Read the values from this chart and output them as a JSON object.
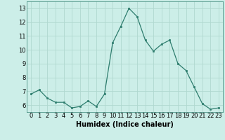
{
  "x": [
    0,
    1,
    2,
    3,
    4,
    5,
    6,
    7,
    8,
    9,
    10,
    11,
    12,
    13,
    14,
    15,
    16,
    17,
    18,
    19,
    20,
    21,
    22,
    23
  ],
  "y": [
    6.8,
    7.1,
    6.5,
    6.2,
    6.2,
    5.8,
    5.9,
    6.3,
    5.9,
    6.8,
    10.5,
    11.7,
    13.0,
    12.4,
    10.7,
    9.9,
    10.4,
    10.7,
    9.0,
    8.5,
    7.3,
    6.1,
    5.7,
    5.8
  ],
  "xlabel": "Humidex (Indice chaleur)",
  "xlim_min": -0.5,
  "xlim_max": 23.5,
  "ylim_min": 5.5,
  "ylim_max": 13.5,
  "yticks": [
    6,
    7,
    8,
    9,
    10,
    11,
    12,
    13
  ],
  "xticks": [
    0,
    1,
    2,
    3,
    4,
    5,
    6,
    7,
    8,
    9,
    10,
    11,
    12,
    13,
    14,
    15,
    16,
    17,
    18,
    19,
    20,
    21,
    22,
    23
  ],
  "line_color": "#2e7d6e",
  "bg_color": "#cceee8",
  "grid_color": "#b0d8d0",
  "label_fontsize": 7,
  "tick_fontsize": 6
}
